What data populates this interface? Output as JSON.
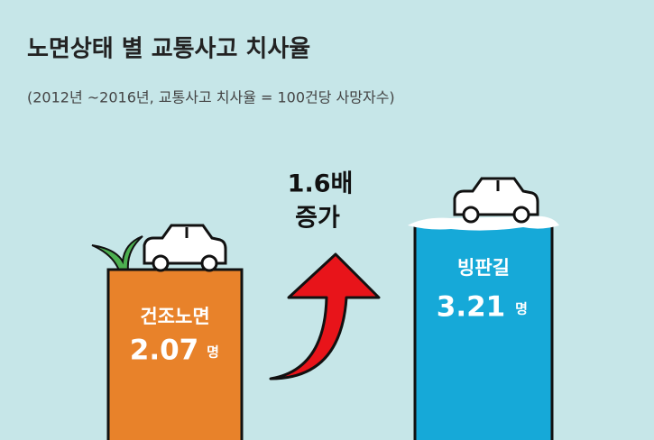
{
  "header": {
    "title": "노면상태 별 교통사고 치사율",
    "subtitle": "(2012년 ~2016년, 교통사고 치사율 = 100건당 사망자수)"
  },
  "items": [
    {
      "label": "건조노면",
      "value": "2.07",
      "unit": "명"
    },
    {
      "label": "빙판길",
      "value": "3.21",
      "unit": "명"
    }
  ],
  "change": {
    "ratio": "1.6배",
    "label": "증가"
  }
}
